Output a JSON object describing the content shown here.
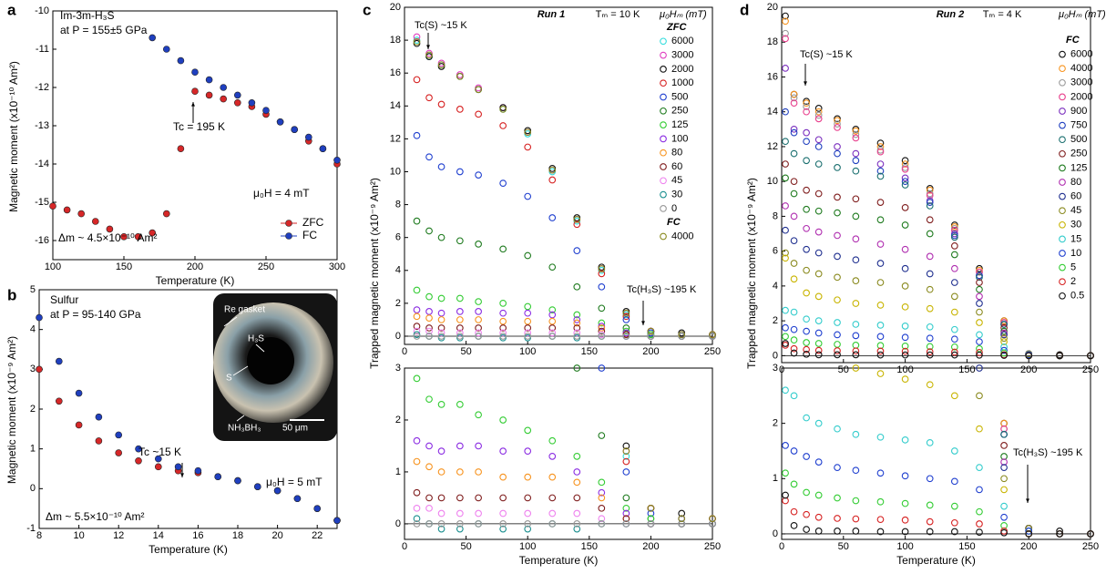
{
  "chart_data": [
    {
      "type": "scatter",
      "label": "a",
      "marker": "filled",
      "xlabel": "Temperature (K)",
      "ylabel": "Magnetic moment (x10⁻¹⁰ Am²)",
      "x": [
        100,
        110,
        120,
        130,
        140,
        150,
        160,
        170,
        180,
        190,
        200,
        210,
        220,
        230,
        240,
        250,
        260,
        270,
        280,
        290,
        300
      ],
      "xlim": [
        100,
        300
      ],
      "xticks": [
        100,
        150,
        200,
        250,
        300
      ],
      "ylim": [
        -16.5,
        -10
      ],
      "yticks": [
        -10,
        -11,
        -12,
        -13,
        -14,
        -15,
        -16
      ],
      "series": [
        {
          "name": "ZFC",
          "color": "#d62728",
          "values": [
            -15.1,
            -15.2,
            -15.3,
            -15.5,
            -15.7,
            -15.9,
            -15.9,
            -15.8,
            -15.3,
            -13.6,
            -12.1,
            -12.2,
            -12.3,
            -12.4,
            -12.5,
            -12.7,
            -12.9,
            -13.1,
            -13.4,
            -13.6,
            -14.0
          ]
        },
        {
          "name": "FC",
          "color": "#1f3fbf",
          "values": [
            null,
            null,
            null,
            null,
            null,
            null,
            null,
            -10.7,
            -11.0,
            -11.3,
            -11.6,
            -11.8,
            -12.0,
            -12.2,
            -12.4,
            -12.6,
            -12.9,
            -13.1,
            -13.3,
            -13.6,
            -13.9
          ]
        }
      ],
      "annotations": [
        "Im-3m-H₃S",
        "at P = 155±5 GPa",
        "Tc = 195 K",
        "μ₀H = 4 mT",
        "Δm ~ 4.5×10⁻¹⁰ Am²"
      ]
    },
    {
      "type": "scatter",
      "label": "b",
      "marker": "filled",
      "xlabel": "Temperature (K)",
      "ylabel": "Magnetic moment (x10⁻⁹ Am²)",
      "x": [
        8,
        9,
        10,
        11,
        12,
        13,
        14,
        15,
        16,
        17,
        18,
        19,
        20,
        21,
        22,
        23
      ],
      "xlim": [
        8,
        23
      ],
      "xticks": [
        8,
        10,
        12,
        14,
        16,
        18,
        20,
        22
      ],
      "ylim": [
        -1,
        5
      ],
      "yticks": [
        -1,
        0,
        1,
        2,
        3,
        4,
        5
      ],
      "series": [
        {
          "name": "ZFC",
          "color": "#d62728",
          "values": [
            3.0,
            2.2,
            1.6,
            1.2,
            0.9,
            0.7,
            0.55,
            0.45,
            0.4,
            0.3,
            0.2,
            0.05,
            -0.05,
            -0.25,
            -0.5,
            -0.8
          ]
        },
        {
          "name": "FC",
          "color": "#1f3fbf",
          "values": [
            4.3,
            3.2,
            2.4,
            1.8,
            1.35,
            1.0,
            0.75,
            0.55,
            0.45,
            0.3,
            0.2,
            0.05,
            -0.05,
            -0.25,
            -0.5,
            -0.8
          ]
        }
      ],
      "annotations": [
        "Sulfur",
        "at P = 95-140 GPa",
        "Tc ~15 K",
        "μ₀H = 5 mT",
        "Δm ~ 5.5×10⁻¹⁰ Am²"
      ],
      "inset_labels": [
        "Re gasket",
        "H₃S",
        "S",
        "NH₃BH₃",
        "50 μm"
      ]
    },
    {
      "type": "scatter",
      "label": "c",
      "marker": "open",
      "xlabel": "Temperature (K)",
      "ylabel": "Trapped magnetic moment (x10⁻⁹ Am²)",
      "legend_title": "μ₀Hₘ (mT)",
      "x": [
        10,
        20,
        30,
        45,
        60,
        80,
        100,
        120,
        140,
        160,
        180,
        200,
        225,
        250
      ],
      "xlim": [
        0,
        250
      ],
      "xticks": [
        0,
        50,
        100,
        150,
        200,
        250
      ],
      "ylim": [
        -0.5,
        20
      ],
      "yticks": [
        0,
        2,
        4,
        6,
        8,
        10,
        12,
        14,
        16,
        18,
        20
      ],
      "zoom_ylim": [
        -0.3,
        3
      ],
      "zoom_yticks": [
        0,
        1,
        2,
        3
      ],
      "series": [
        {
          "name": "6000",
          "group": "ZFC",
          "color": "#33dddd",
          "values": [
            18.0,
            17.0,
            16.5,
            15.8,
            15.0,
            13.8,
            12.3,
            10.0,
            7.0,
            4.0,
            1.3,
            0.3,
            0.1,
            0.1
          ]
        },
        {
          "name": "3000",
          "group": "ZFC",
          "color": "#e040c0",
          "values": [
            18.2,
            17.2,
            16.6,
            15.9,
            15.1,
            13.9,
            12.4,
            10.1,
            7.1,
            4.1,
            1.4,
            0.3,
            0.1,
            0.1
          ]
        },
        {
          "name": "2000",
          "group": "ZFC",
          "color": "#111111",
          "values": [
            17.8,
            17.0,
            16.4,
            15.8,
            15.0,
            13.9,
            12.5,
            10.2,
            7.2,
            4.2,
            1.5,
            0.3,
            0.2,
            0.1
          ]
        },
        {
          "name": "1000",
          "group": "ZFC",
          "color": "#d62020",
          "values": [
            15.6,
            14.5,
            14.1,
            13.8,
            13.5,
            12.8,
            11.5,
            9.5,
            6.8,
            3.8,
            1.2,
            0.3,
            0.1,
            0.1
          ]
        },
        {
          "name": "500",
          "group": "ZFC",
          "color": "#1f3fcf",
          "values": [
            12.2,
            10.9,
            10.3,
            10.0,
            9.8,
            9.3,
            8.5,
            7.2,
            5.2,
            3.0,
            1.0,
            0.2,
            0.1,
            0.0
          ]
        },
        {
          "name": "250",
          "group": "ZFC",
          "color": "#1e7a1e",
          "values": [
            7.0,
            6.4,
            6.0,
            5.8,
            5.6,
            5.3,
            4.9,
            4.2,
            3.0,
            1.7,
            0.5,
            0.1,
            0.0,
            0.0
          ]
        },
        {
          "name": "125",
          "group": "ZFC",
          "color": "#33cc33",
          "values": [
            2.8,
            2.4,
            2.3,
            2.3,
            2.1,
            2.0,
            1.8,
            1.6,
            1.3,
            0.8,
            0.3,
            0.1,
            0.0,
            0.0
          ]
        },
        {
          "name": "100",
          "group": "ZFC",
          "color": "#8a2be2",
          "values": [
            1.6,
            1.5,
            1.4,
            1.5,
            1.5,
            1.4,
            1.4,
            1.3,
            1.0,
            0.6,
            0.2,
            0.0,
            0.0,
            0.0
          ]
        },
        {
          "name": "80",
          "group": "ZFC",
          "color": "#f7931e",
          "values": [
            1.2,
            1.1,
            1.0,
            1.0,
            1.0,
            0.9,
            0.9,
            0.9,
            0.8,
            0.5,
            0.1,
            0.0,
            0.0,
            0.0
          ]
        },
        {
          "name": "60",
          "group": "ZFC",
          "color": "#7f1d1d",
          "values": [
            0.6,
            0.5,
            0.5,
            0.5,
            0.5,
            0.5,
            0.5,
            0.5,
            0.5,
            0.3,
            0.1,
            0.0,
            0.0,
            0.0
          ]
        },
        {
          "name": "45",
          "group": "ZFC",
          "color": "#ee82ee",
          "values": [
            0.3,
            0.3,
            0.2,
            0.2,
            0.2,
            0.2,
            0.2,
            0.2,
            0.2,
            0.1,
            0.0,
            0.0,
            0.0,
            0.0
          ]
        },
        {
          "name": "30",
          "group": "ZFC",
          "color": "#1a8f8f",
          "values": [
            0.1,
            0.0,
            -0.1,
            -0.1,
            0.0,
            -0.1,
            -0.1,
            0.0,
            -0.1,
            0.0,
            0.0,
            0.0,
            0.0,
            0.0
          ]
        },
        {
          "name": "0",
          "group": "ZFC",
          "color": "#999999",
          "values": [
            0.0,
            0.0,
            0.0,
            0.0,
            0.0,
            0.0,
            0.0,
            0.0,
            0.0,
            0.0,
            0.0,
            0.0,
            0.0,
            0.0
          ]
        },
        {
          "name": "4000",
          "group": "FC",
          "color": "#8a8a1f",
          "values": [
            17.9,
            17.1,
            16.5,
            15.8,
            15.0,
            13.8,
            12.4,
            10.1,
            7.1,
            4.1,
            1.4,
            0.3,
            0.1,
            0.1
          ]
        }
      ],
      "annotations": [
        "Run 1",
        "Tₘ = 10 K",
        "Tc(S) ~15 K",
        "Tc(H₃S) ~195 K"
      ]
    },
    {
      "type": "scatter",
      "label": "d",
      "marker": "open",
      "xlabel": "Temperature (K)",
      "ylabel": "Trapped magnetic moment (x10⁻⁹ Am²)",
      "legend_title": "μ₀Hₘ (mT)",
      "x": [
        3,
        10,
        20,
        30,
        45,
        60,
        80,
        100,
        120,
        140,
        160,
        180,
        200,
        225,
        250
      ],
      "xlim": [
        0,
        250
      ],
      "xticks": [
        0,
        50,
        100,
        150,
        200,
        250
      ],
      "ylim": [
        -0.4,
        20
      ],
      "yticks": [
        0,
        2,
        4,
        6,
        8,
        10,
        12,
        14,
        16,
        18,
        20
      ],
      "zoom_ylim": [
        -0.1,
        3
      ],
      "zoom_yticks": [
        0,
        1,
        2,
        3
      ],
      "series": [
        {
          "name": "6000",
          "group": "FC",
          "color": "#111111",
          "values": [
            19.5,
            15,
            14.6,
            14.2,
            13.6,
            13,
            12.2,
            11.2,
            9.6,
            7.5,
            5,
            2,
            0.1,
            0.05,
            0
          ]
        },
        {
          "name": "4000",
          "group": "FC",
          "color": "#f7931e",
          "values": [
            19.2,
            15,
            14.5,
            14,
            13.5,
            12.9,
            12,
            11,
            9.5,
            7.4,
            4.9,
            2,
            0.1,
            0,
            0
          ]
        },
        {
          "name": "3000",
          "group": "FC",
          "color": "#999999",
          "values": [
            18.5,
            14.8,
            14.3,
            13.8,
            13.3,
            12.7,
            11.8,
            10.8,
            9.3,
            7.3,
            4.8,
            1.9,
            0.1,
            0,
            0
          ]
        },
        {
          "name": "2000",
          "group": "FC",
          "color": "#e83e8c",
          "values": [
            18.2,
            14.5,
            14,
            13.6,
            13.1,
            12.5,
            11.7,
            10.7,
            9.2,
            7.2,
            4.8,
            1.9,
            0.1,
            0,
            0
          ]
        },
        {
          "name": "900",
          "group": "FC",
          "color": "#7b2fbe",
          "values": [
            16.5,
            13,
            12.8,
            12.4,
            12,
            11.6,
            11,
            10.2,
            8.9,
            7,
            4.6,
            1.8,
            0.1,
            0,
            0
          ]
        },
        {
          "name": "750",
          "group": "FC",
          "color": "#1f3fbf",
          "values": [
            14,
            12.8,
            12.3,
            12,
            11.6,
            11.2,
            10.6,
            10,
            8.8,
            6.9,
            4.6,
            1.8,
            0.1,
            0,
            0
          ]
        },
        {
          "name": "500",
          "group": "FC",
          "color": "#1a6f6f",
          "values": [
            12.3,
            11.6,
            11.2,
            11,
            10.8,
            10.6,
            10.3,
            9.8,
            8.6,
            6.8,
            4.5,
            1.8,
            0.1,
            0,
            0
          ]
        },
        {
          "name": "250",
          "group": "FC",
          "color": "#7f1d1d",
          "values": [
            11,
            10,
            9.5,
            9.3,
            9.1,
            9,
            8.8,
            8.5,
            7.8,
            6.3,
            4.2,
            1.6,
            0.1,
            0,
            0
          ]
        },
        {
          "name": "125",
          "group": "FC",
          "color": "#1e7a1e",
          "values": [
            10.2,
            9.3,
            8.4,
            8.3,
            8.2,
            8.0,
            7.8,
            7.5,
            7.0,
            5.8,
            3.8,
            1.4,
            0.1,
            0,
            0
          ]
        },
        {
          "name": "80",
          "group": "FC",
          "color": "#b02fb0",
          "values": [
            8.6,
            8,
            7.3,
            7.1,
            6.9,
            6.7,
            6.4,
            6.1,
            5.7,
            5,
            3.4,
            1.3,
            0.1,
            0,
            0
          ]
        },
        {
          "name": "60",
          "group": "FC",
          "color": "#1f2f8f",
          "values": [
            7.2,
            6.6,
            6.1,
            5.9,
            5.7,
            5.5,
            5.3,
            5.0,
            4.7,
            4.2,
            3.0,
            1.2,
            0.1,
            0,
            0
          ]
        },
        {
          "name": "45",
          "group": "FC",
          "color": "#8a8a1f",
          "values": [
            5.9,
            5.3,
            4.9,
            4.7,
            4.5,
            4.3,
            4.2,
            4.0,
            3.8,
            3.4,
            2.5,
            1.0,
            0.1,
            0,
            0
          ]
        },
        {
          "name": "30",
          "group": "FC",
          "color": "#c8b400",
          "values": [
            5.6,
            4.4,
            3.6,
            3.4,
            3.2,
            3.0,
            2.9,
            2.8,
            2.7,
            2.5,
            1.9,
            0.8,
            0.05,
            0,
            0
          ]
        },
        {
          "name": "15",
          "group": "FC",
          "color": "#33cccc",
          "values": [
            2.6,
            2.5,
            2.1,
            2.0,
            1.9,
            1.8,
            1.75,
            1.7,
            1.65,
            1.5,
            1.2,
            0.5,
            0.05,
            0,
            0
          ]
        },
        {
          "name": "10",
          "group": "FC",
          "color": "#1f3fcf",
          "values": [
            1.6,
            1.5,
            1.4,
            1.3,
            1.2,
            1.15,
            1.1,
            1.05,
            1.0,
            0.95,
            0.8,
            0.3,
            0.05,
            0,
            0
          ]
        },
        {
          "name": "5",
          "group": "FC",
          "color": "#33cc33",
          "values": [
            1.1,
            0.9,
            0.75,
            0.7,
            0.65,
            0.6,
            0.58,
            0.55,
            0.52,
            0.5,
            0.4,
            0.15,
            0,
            0,
            0
          ]
        },
        {
          "name": "2",
          "group": "FC",
          "color": "#d62020",
          "values": [
            0.6,
            0.4,
            0.35,
            0.3,
            0.28,
            0.27,
            0.26,
            0.25,
            0.22,
            0.2,
            0.18,
            0.05,
            0,
            0,
            0
          ]
        },
        {
          "name": "0.5",
          "group": "FC",
          "color": "#111111",
          "values": [
            0.7,
            0.15,
            0.08,
            0.05,
            0.05,
            0.05,
            0.04,
            0.04,
            0.04,
            0.04,
            0.03,
            0.02,
            0,
            0,
            0
          ]
        }
      ],
      "annotations": [
        "Run 2",
        "Tₘ = 4 K",
        "Tc(S) ~15 K",
        "Tc(H₃S) ~195 K"
      ]
    }
  ]
}
